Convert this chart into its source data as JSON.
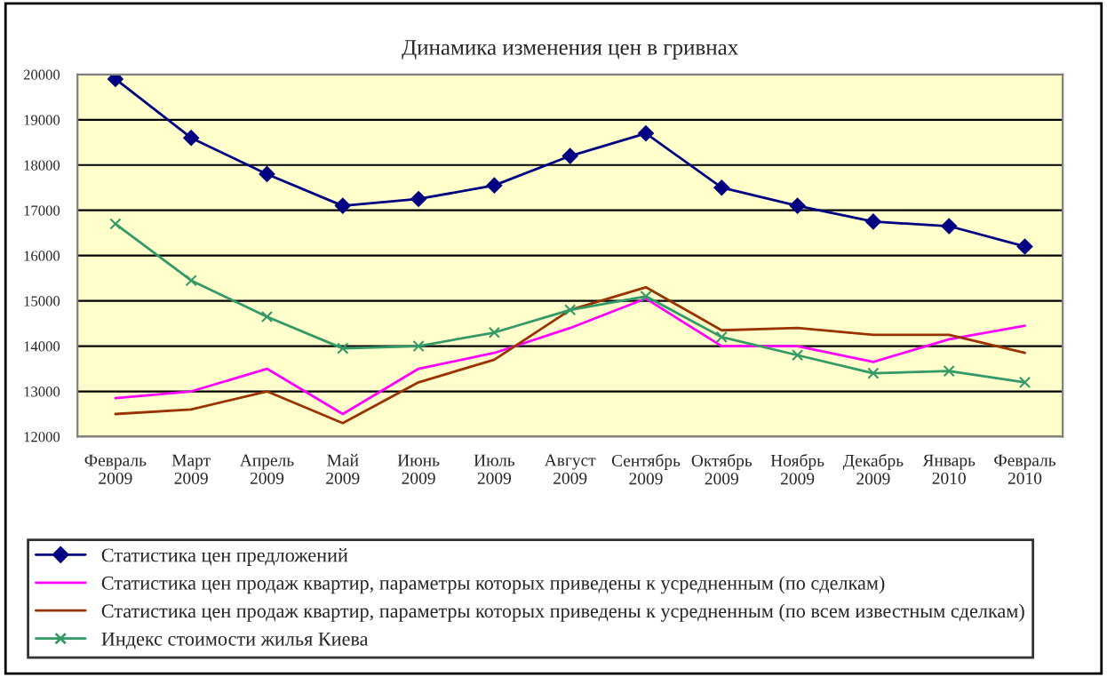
{
  "chart_data": {
    "type": "line",
    "title": "Динамика изменения цен в гривнах",
    "categories": [
      "Февраль\n2009",
      "Март\n2009",
      "Апрель\n2009",
      "Май\n2009",
      "Июнь\n2009",
      "Июль\n2009",
      "Август\n2009",
      "Сентябрь\n2009",
      "Октябрь\n2009",
      "Ноябрь\n2009",
      "Декабрь\n2009",
      "Январь\n2010",
      "Февраль\n2010"
    ],
    "series": [
      {
        "name": "Статистика цен предложений",
        "color": "#000080",
        "marker": "diamond",
        "values": [
          19900,
          18600,
          17800,
          17100,
          17250,
          17550,
          18200,
          18700,
          17500,
          17100,
          16750,
          16650,
          16200
        ]
      },
      {
        "name": "Статистика цен продаж квартир, параметры которых приведены к усредненным (по сделкам)",
        "color": "#ff00ff",
        "marker": "none",
        "values": [
          12850,
          13000,
          13500,
          12500,
          13500,
          13850,
          14400,
          15050,
          14000,
          14000,
          13650,
          14150,
          14450
        ]
      },
      {
        "name": "Статистика цен продаж квартир, параметры которых приведены к усредненным (по всем известным сделкам)",
        "color": "#993300",
        "marker": "none",
        "values": [
          12500,
          12600,
          13000,
          12300,
          13200,
          13700,
          14800,
          15300,
          14350,
          14400,
          14250,
          14250,
          13850
        ]
      },
      {
        "name": "Индекс стоимости жилья Киева",
        "color": "#339966",
        "marker": "cross",
        "values": [
          16700,
          15450,
          14650,
          13950,
          14000,
          14300,
          14800,
          15100,
          14200,
          13800,
          13400,
          13450,
          13200
        ]
      }
    ],
    "ylim": [
      12000,
      20000
    ],
    "yticks": [
      12000,
      13000,
      14000,
      15000,
      16000,
      17000,
      18000,
      19000,
      20000
    ],
    "grid": "y",
    "legend": "bottom"
  }
}
